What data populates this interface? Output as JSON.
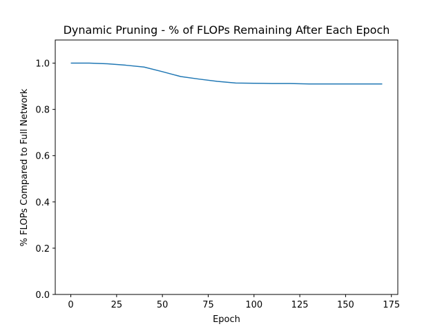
{
  "chart_data": {
    "type": "line",
    "title": "Dynamic Pruning - % of FLOPs Remaining After Each Epoch",
    "xlabel": "Epoch",
    "ylabel": "% FLOPs Compared to Full Network",
    "xlim": [
      -8.5,
      178.5
    ],
    "ylim": [
      0.0,
      1.1
    ],
    "xticks": [
      0,
      25,
      50,
      75,
      100,
      125,
      150,
      175
    ],
    "xtick_labels": [
      "0",
      "25",
      "50",
      "75",
      "100",
      "125",
      "150",
      "175"
    ],
    "yticks": [
      0.0,
      0.2,
      0.4,
      0.6,
      0.8,
      1.0
    ],
    "ytick_labels": [
      "0.0",
      "0.2",
      "0.4",
      "0.6",
      "0.8",
      "1.0"
    ],
    "grid": false,
    "legend": null,
    "series": [
      {
        "color": "#1f77b4",
        "x": [
          0,
          10,
          20,
          30,
          40,
          50,
          60,
          70,
          80,
          90,
          100,
          110,
          120,
          130,
          140,
          150,
          160,
          170
        ],
        "y": [
          1.0,
          1.0,
          0.997,
          0.991,
          0.983,
          0.963,
          0.942,
          0.931,
          0.921,
          0.914,
          0.913,
          0.912,
          0.912,
          0.91,
          0.91,
          0.91,
          0.91,
          0.91
        ]
      }
    ]
  }
}
